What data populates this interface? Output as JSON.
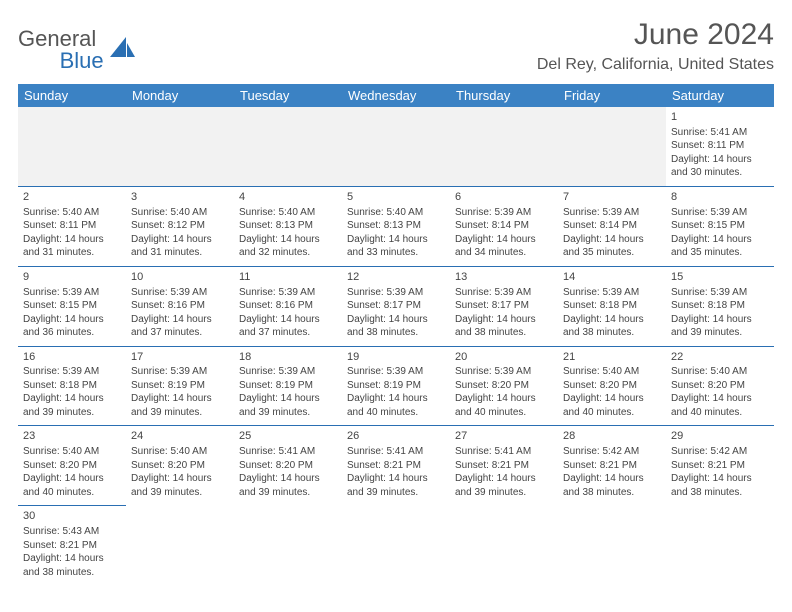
{
  "brand": {
    "name_a": "General",
    "name_b": "Blue"
  },
  "title": "June 2024",
  "location": "Del Rey, California, United States",
  "header_bg": "#3b82c4",
  "border_color": "#2a6fb3",
  "weekdays": [
    "Sunday",
    "Monday",
    "Tuesday",
    "Wednesday",
    "Thursday",
    "Friday",
    "Saturday"
  ],
  "weeks": [
    [
      null,
      null,
      null,
      null,
      null,
      null,
      {
        "d": "1",
        "sr": "5:41 AM",
        "ss": "8:11 PM",
        "dl": "14 hours and 30 minutes."
      }
    ],
    [
      {
        "d": "2",
        "sr": "5:40 AM",
        "ss": "8:11 PM",
        "dl": "14 hours and 31 minutes."
      },
      {
        "d": "3",
        "sr": "5:40 AM",
        "ss": "8:12 PM",
        "dl": "14 hours and 31 minutes."
      },
      {
        "d": "4",
        "sr": "5:40 AM",
        "ss": "8:13 PM",
        "dl": "14 hours and 32 minutes."
      },
      {
        "d": "5",
        "sr": "5:40 AM",
        "ss": "8:13 PM",
        "dl": "14 hours and 33 minutes."
      },
      {
        "d": "6",
        "sr": "5:39 AM",
        "ss": "8:14 PM",
        "dl": "14 hours and 34 minutes."
      },
      {
        "d": "7",
        "sr": "5:39 AM",
        "ss": "8:14 PM",
        "dl": "14 hours and 35 minutes."
      },
      {
        "d": "8",
        "sr": "5:39 AM",
        "ss": "8:15 PM",
        "dl": "14 hours and 35 minutes."
      }
    ],
    [
      {
        "d": "9",
        "sr": "5:39 AM",
        "ss": "8:15 PM",
        "dl": "14 hours and 36 minutes."
      },
      {
        "d": "10",
        "sr": "5:39 AM",
        "ss": "8:16 PM",
        "dl": "14 hours and 37 minutes."
      },
      {
        "d": "11",
        "sr": "5:39 AM",
        "ss": "8:16 PM",
        "dl": "14 hours and 37 minutes."
      },
      {
        "d": "12",
        "sr": "5:39 AM",
        "ss": "8:17 PM",
        "dl": "14 hours and 38 minutes."
      },
      {
        "d": "13",
        "sr": "5:39 AM",
        "ss": "8:17 PM",
        "dl": "14 hours and 38 minutes."
      },
      {
        "d": "14",
        "sr": "5:39 AM",
        "ss": "8:18 PM",
        "dl": "14 hours and 38 minutes."
      },
      {
        "d": "15",
        "sr": "5:39 AM",
        "ss": "8:18 PM",
        "dl": "14 hours and 39 minutes."
      }
    ],
    [
      {
        "d": "16",
        "sr": "5:39 AM",
        "ss": "8:18 PM",
        "dl": "14 hours and 39 minutes."
      },
      {
        "d": "17",
        "sr": "5:39 AM",
        "ss": "8:19 PM",
        "dl": "14 hours and 39 minutes."
      },
      {
        "d": "18",
        "sr": "5:39 AM",
        "ss": "8:19 PM",
        "dl": "14 hours and 39 minutes."
      },
      {
        "d": "19",
        "sr": "5:39 AM",
        "ss": "8:19 PM",
        "dl": "14 hours and 40 minutes."
      },
      {
        "d": "20",
        "sr": "5:39 AM",
        "ss": "8:20 PM",
        "dl": "14 hours and 40 minutes."
      },
      {
        "d": "21",
        "sr": "5:40 AM",
        "ss": "8:20 PM",
        "dl": "14 hours and 40 minutes."
      },
      {
        "d": "22",
        "sr": "5:40 AM",
        "ss": "8:20 PM",
        "dl": "14 hours and 40 minutes."
      }
    ],
    [
      {
        "d": "23",
        "sr": "5:40 AM",
        "ss": "8:20 PM",
        "dl": "14 hours and 40 minutes."
      },
      {
        "d": "24",
        "sr": "5:40 AM",
        "ss": "8:20 PM",
        "dl": "14 hours and 39 minutes."
      },
      {
        "d": "25",
        "sr": "5:41 AM",
        "ss": "8:20 PM",
        "dl": "14 hours and 39 minutes."
      },
      {
        "d": "26",
        "sr": "5:41 AM",
        "ss": "8:21 PM",
        "dl": "14 hours and 39 minutes."
      },
      {
        "d": "27",
        "sr": "5:41 AM",
        "ss": "8:21 PM",
        "dl": "14 hours and 39 minutes."
      },
      {
        "d": "28",
        "sr": "5:42 AM",
        "ss": "8:21 PM",
        "dl": "14 hours and 38 minutes."
      },
      {
        "d": "29",
        "sr": "5:42 AM",
        "ss": "8:21 PM",
        "dl": "14 hours and 38 minutes."
      }
    ],
    [
      {
        "d": "30",
        "sr": "5:43 AM",
        "ss": "8:21 PM",
        "dl": "14 hours and 38 minutes."
      },
      null,
      null,
      null,
      null,
      null,
      null
    ]
  ],
  "labels": {
    "sunrise": "Sunrise:",
    "sunset": "Sunset:",
    "daylight": "Daylight:"
  }
}
